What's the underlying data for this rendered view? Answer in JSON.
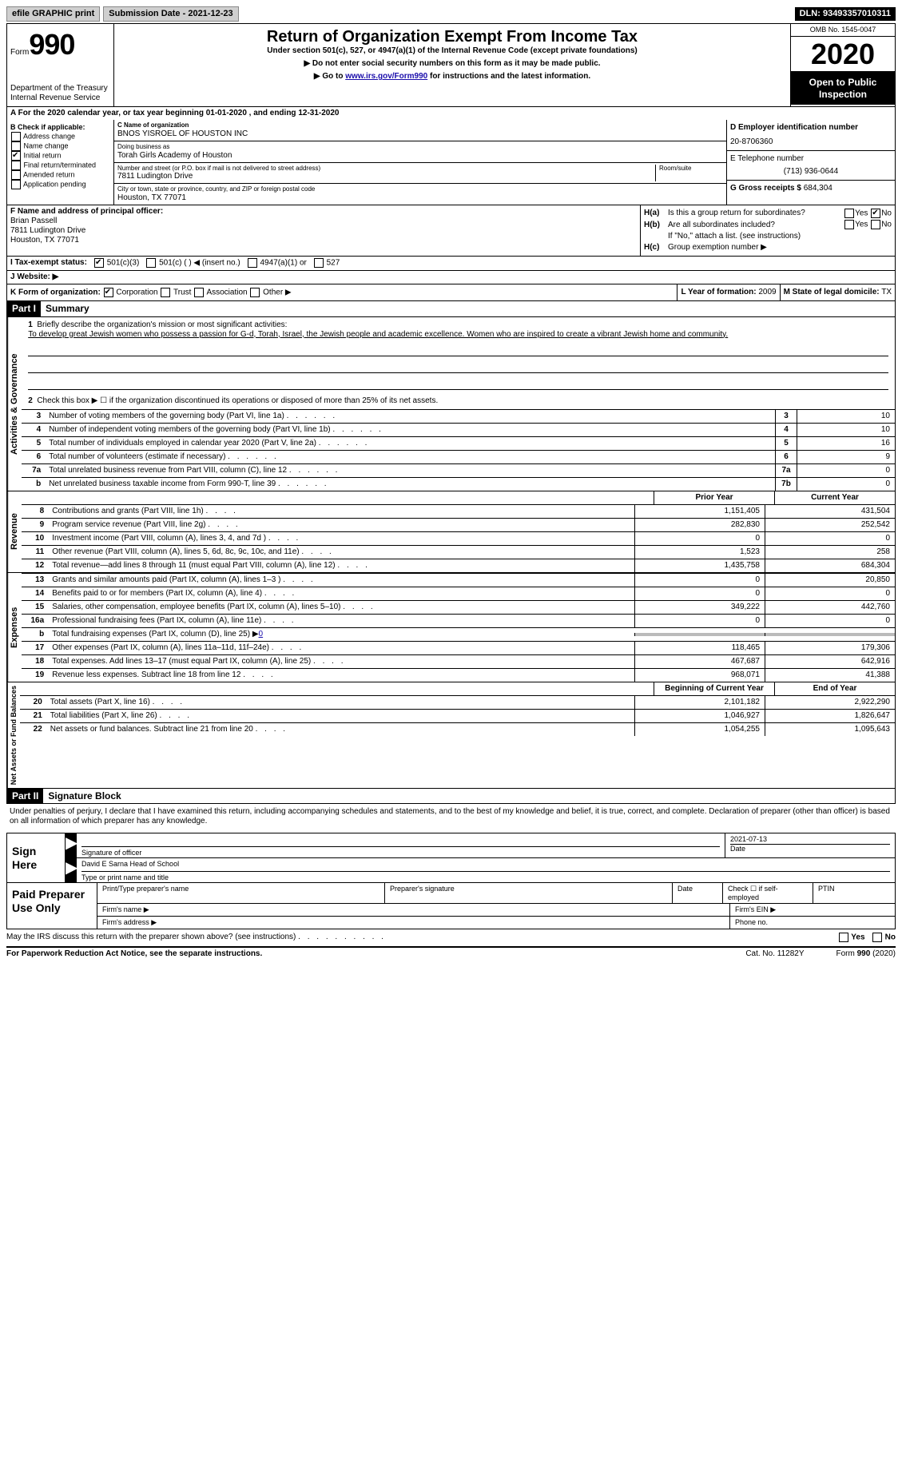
{
  "topbar": {
    "efile": "efile GRAPHIC print",
    "sub_date_label": "Submission Date - ",
    "sub_date": "2021-12-23",
    "dln_label": "DLN: ",
    "dln": "93493357010311"
  },
  "header": {
    "form_label": "Form",
    "form_number": "990",
    "dept": "Department of the Treasury\nInternal Revenue Service",
    "title": "Return of Organization Exempt From Income Tax",
    "subtitle": "Under section 501(c), 527, or 4947(a)(1) of the Internal Revenue Code (except private foundations)",
    "note1": "▶ Do not enter social security numbers on this form as it may be made public.",
    "note2_pre": "▶ Go to ",
    "note2_link": "www.irs.gov/Form990",
    "note2_post": " for instructions and the latest information.",
    "omb": "OMB No. 1545-0047",
    "year": "2020",
    "inspection": "Open to Public Inspection"
  },
  "lineA": "A For the 2020 calendar year, or tax year beginning 01-01-2020    , and ending 12-31-2020",
  "boxB": {
    "label": "B Check if applicable:",
    "items": [
      "Address change",
      "Name change",
      "Initial return",
      "Final return/terminated",
      "Amended return",
      "Application pending"
    ]
  },
  "boxC": {
    "name_label": "C Name of organization",
    "name": "BNOS YISROEL OF HOUSTON INC",
    "dba_label": "Doing business as",
    "dba": "Torah Girls Academy of Houston",
    "street_label": "Number and street (or P.O. box if mail is not delivered to street address)",
    "room_label": "Room/suite",
    "street": "7811 Ludington Drive",
    "city_label": "City or town, state or province, country, and ZIP or foreign postal code",
    "city": "Houston, TX  77071"
  },
  "boxD": {
    "label": "D Employer identification number",
    "val": "20-8706360"
  },
  "boxE": {
    "label": "E Telephone number",
    "val": "(713) 936-0644"
  },
  "boxG": {
    "label": "G Gross receipts $",
    "val": "684,304"
  },
  "boxF": {
    "label": "F  Name and address of principal officer:",
    "name": "Brian Passell",
    "addr1": "7811 Ludington Drive",
    "addr2": "Houston, TX  77071"
  },
  "boxH": {
    "a_label": "Is this a group return for subordinates?",
    "a_pre": "H(a)",
    "b_pre": "H(b)",
    "b_label": "Are all subordinates included?",
    "b_note": "If \"No,\" attach a list. (see instructions)",
    "c_pre": "H(c)",
    "c_label": "Group exemption number ▶",
    "yes": "Yes",
    "no": "No"
  },
  "lineI": {
    "label": "I   Tax-exempt status:",
    "a": "501(c)(3)",
    "b": "501(c) (   ) ◀ (insert no.)",
    "c": "4947(a)(1) or",
    "d": "527"
  },
  "lineJ": {
    "label": "J   Website: ▶"
  },
  "lineK": {
    "label": "K Form of organization:",
    "a": "Corporation",
    "b": "Trust",
    "c": "Association",
    "d": "Other ▶"
  },
  "lineL": {
    "label": "L Year of formation:",
    "val": "2009"
  },
  "lineM": {
    "label": "M State of legal domicile:",
    "val": "TX"
  },
  "partI": {
    "tag": "Part I",
    "title": "Summary"
  },
  "mission": {
    "label": "Briefly describe the organization's mission or most significant activities:",
    "text": "To develop great Jewish women who possess a passion for G-d, Torah, Israel, the Jewish people and academic excellence. Women who are inspired to create a vibrant Jewish home and community."
  },
  "line2": "Check this box ▶ ☐  if the organization discontinued its operations or disposed of more than 25% of its net assets.",
  "gov_lines": [
    {
      "n": "3",
      "d": "Number of voting members of the governing body (Part VI, line 1a)",
      "box": "3",
      "v": "10"
    },
    {
      "n": "4",
      "d": "Number of independent voting members of the governing body (Part VI, line 1b)",
      "box": "4",
      "v": "10"
    },
    {
      "n": "5",
      "d": "Total number of individuals employed in calendar year 2020 (Part V, line 2a)",
      "box": "5",
      "v": "16"
    },
    {
      "n": "6",
      "d": "Total number of volunteers (estimate if necessary)",
      "box": "6",
      "v": "9"
    },
    {
      "n": "7a",
      "d": "Total unrelated business revenue from Part VIII, column (C), line 12",
      "box": "7a",
      "v": "0"
    },
    {
      "n": "b",
      "d": "Net unrelated business taxable income from Form 990-T, line 39",
      "box": "7b",
      "v": "0"
    }
  ],
  "col_headers": {
    "prior": "Prior Year",
    "current": "Current Year"
  },
  "revenue_lines": [
    {
      "n": "8",
      "d": "Contributions and grants (Part VIII, line 1h)",
      "p": "1,151,405",
      "c": "431,504"
    },
    {
      "n": "9",
      "d": "Program service revenue (Part VIII, line 2g)",
      "p": "282,830",
      "c": "252,542"
    },
    {
      "n": "10",
      "d": "Investment income (Part VIII, column (A), lines 3, 4, and 7d )",
      "p": "0",
      "c": "0"
    },
    {
      "n": "11",
      "d": "Other revenue (Part VIII, column (A), lines 5, 6d, 8c, 9c, 10c, and 11e)",
      "p": "1,523",
      "c": "258"
    },
    {
      "n": "12",
      "d": "Total revenue—add lines 8 through 11 (must equal Part VIII, column (A), line 12)",
      "p": "1,435,758",
      "c": "684,304"
    }
  ],
  "expense_lines": [
    {
      "n": "13",
      "d": "Grants and similar amounts paid (Part IX, column (A), lines 1–3 )",
      "p": "0",
      "c": "20,850"
    },
    {
      "n": "14",
      "d": "Benefits paid to or for members (Part IX, column (A), line 4)",
      "p": "0",
      "c": "0"
    },
    {
      "n": "15",
      "d": "Salaries, other compensation, employee benefits (Part IX, column (A), lines 5–10)",
      "p": "349,222",
      "c": "442,760"
    },
    {
      "n": "16a",
      "d": "Professional fundraising fees (Part IX, column (A), line 11e)",
      "p": "0",
      "c": "0"
    }
  ],
  "line16b": {
    "n": "b",
    "d": "Total fundraising expenses (Part IX, column (D), line 25) ▶",
    "v": "0"
  },
  "expense_lines2": [
    {
      "n": "17",
      "d": "Other expenses (Part IX, column (A), lines 11a–11d, 11f–24e)",
      "p": "118,465",
      "c": "179,306"
    },
    {
      "n": "18",
      "d": "Total expenses. Add lines 13–17 (must equal Part IX, column (A), line 25)",
      "p": "467,687",
      "c": "642,916"
    },
    {
      "n": "19",
      "d": "Revenue less expenses. Subtract line 18 from line 12",
      "p": "968,071",
      "c": "41,388"
    }
  ],
  "na_headers": {
    "begin": "Beginning of Current Year",
    "end": "End of Year"
  },
  "na_lines": [
    {
      "n": "20",
      "d": "Total assets (Part X, line 16)",
      "p": "2,101,182",
      "c": "2,922,290"
    },
    {
      "n": "21",
      "d": "Total liabilities (Part X, line 26)",
      "p": "1,046,927",
      "c": "1,826,647"
    },
    {
      "n": "22",
      "d": "Net assets or fund balances. Subtract line 21 from line 20",
      "p": "1,054,255",
      "c": "1,095,643"
    }
  ],
  "partII": {
    "tag": "Part II",
    "title": "Signature Block"
  },
  "penalties": "Under penalties of perjury, I declare that I have examined this return, including accompanying schedules and statements, and to the best of my knowledge and belief, it is true, correct, and complete. Declaration of preparer (other than officer) is based on all information of which preparer has any knowledge.",
  "sign": {
    "label": "Sign Here",
    "sig_label": "Signature of officer",
    "date_label": "Date",
    "date": "2021-07-13",
    "name": "David E Sarna  Head of School",
    "name_label": "Type or print name and title"
  },
  "prep": {
    "label": "Paid Preparer Use Only",
    "c1": "Print/Type preparer's name",
    "c2": "Preparer's signature",
    "c3": "Date",
    "c4": "Check ☐ if self-employed",
    "c5": "PTIN",
    "firm_name": "Firm's name    ▶",
    "firm_ein": "Firm's EIN ▶",
    "firm_addr": "Firm's address ▶",
    "phone": "Phone no."
  },
  "discuss": "May the IRS discuss this return with the preparer shown above? (see instructions)",
  "footer": {
    "notice": "For Paperwork Reduction Act Notice, see the separate instructions.",
    "cat": "Cat. No. 11282Y",
    "form": "Form 990 (2020)"
  },
  "labels": {
    "activities": "Activities & Governance",
    "revenue": "Revenue",
    "expenses": "Expenses",
    "net_assets": "Net Assets or Fund Balances"
  }
}
